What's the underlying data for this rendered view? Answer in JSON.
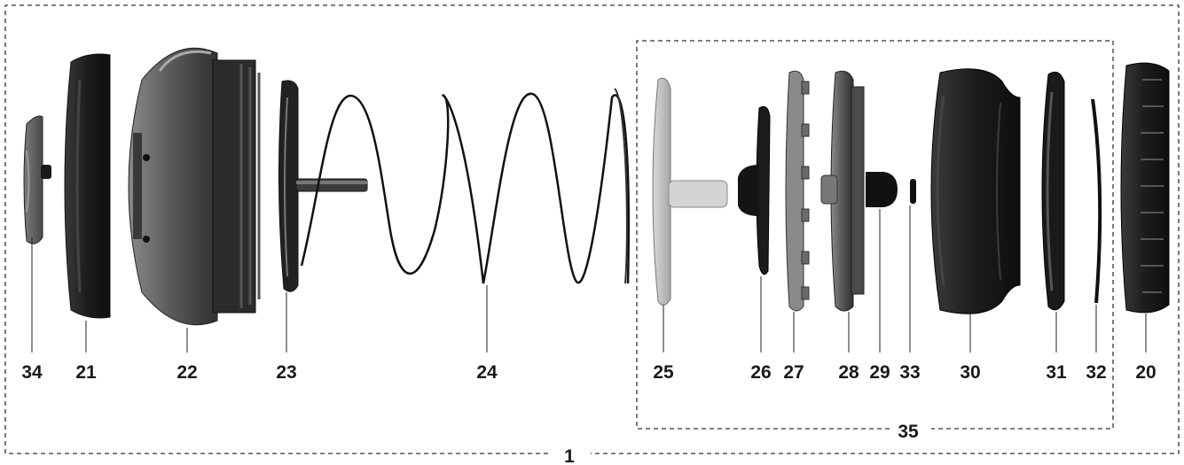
{
  "diagram": {
    "assembly_label": "1",
    "subassembly_label": "35",
    "parts": [
      {
        "id": "34",
        "label": "34"
      },
      {
        "id": "21",
        "label": "21"
      },
      {
        "id": "22",
        "label": "22"
      },
      {
        "id": "23",
        "label": "23"
      },
      {
        "id": "24",
        "label": "24"
      },
      {
        "id": "25",
        "label": "25"
      },
      {
        "id": "26",
        "label": "26"
      },
      {
        "id": "27",
        "label": "27"
      },
      {
        "id": "28",
        "label": "28"
      },
      {
        "id": "29",
        "label": "29"
      },
      {
        "id": "33",
        "label": "33"
      },
      {
        "id": "30",
        "label": "30"
      },
      {
        "id": "31",
        "label": "31"
      },
      {
        "id": "32",
        "label": "32"
      },
      {
        "id": "20",
        "label": "20"
      }
    ]
  }
}
